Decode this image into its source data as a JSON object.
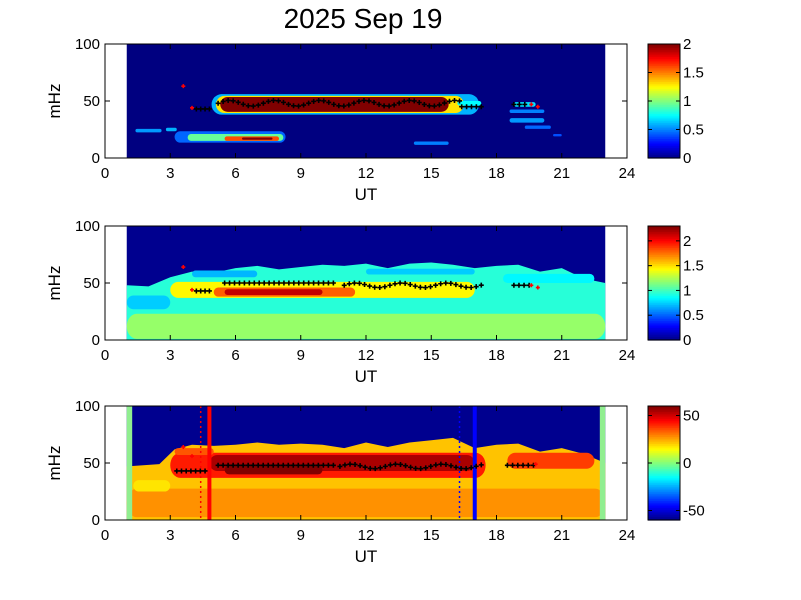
{
  "title": "2025 Sep 19",
  "colors": {
    "background_fill": "#00008f",
    "data_gap": "#ffffff",
    "edge_band": "#90ee90",
    "black_markers": "#000000",
    "red_markers": "#ff0000",
    "blue_line": "#0000ff",
    "red_line": "#ff0000"
  },
  "chart_data": [
    {
      "type": "heatmap",
      "name": "panel-1",
      "xlabel": "UT",
      "ylabel": "mHz",
      "xlim": [
        0,
        24
      ],
      "ylim": [
        0,
        100
      ],
      "xticks": [
        "0",
        "3",
        "6",
        "9",
        "12",
        "15",
        "18",
        "21",
        "24"
      ],
      "yticks": [
        "0",
        "50",
        "100"
      ],
      "data_extent_ut": [
        1,
        23
      ],
      "colorbar": {
        "range": [
          0,
          2
        ],
        "ticks": [
          "0",
          "0.5",
          "1",
          "1.5",
          "2"
        ]
      },
      "background_value": 0,
      "features": [
        {
          "x0": 1.4,
          "x1": 2.6,
          "y": 24,
          "h": 3,
          "v": 0.55
        },
        {
          "x0": 2.8,
          "x1": 3.3,
          "y": 25,
          "h": 3,
          "v": 0.6
        },
        {
          "x0": 3.2,
          "x1": 8.3,
          "y": 18.5,
          "h": 10,
          "v": 0.45
        },
        {
          "x0": 3.8,
          "x1": 8.2,
          "y": 18,
          "h": 6,
          "v": 0.95
        },
        {
          "x0": 5.5,
          "x1": 8.0,
          "y": 17,
          "h": 4,
          "v": 1.6
        },
        {
          "x0": 6.3,
          "x1": 7.7,
          "y": 17,
          "h": 2,
          "v": 2.0
        },
        {
          "x0": 14.2,
          "x1": 15.8,
          "y": 13,
          "h": 3,
          "v": 0.5
        },
        {
          "x0": 4.9,
          "x1": 17.2,
          "y": 47,
          "h": 18,
          "v": 0.6
        },
        {
          "x0": 5.1,
          "x1": 16.5,
          "y": 47,
          "h": 15,
          "v": 1.3
        },
        {
          "x0": 5.3,
          "x1": 15.8,
          "y": 47,
          "h": 13,
          "v": 2.0
        },
        {
          "x0": 16.2,
          "x1": 17.3,
          "y": 48,
          "h": 4,
          "v": 0.75
        },
        {
          "x0": 18.8,
          "x1": 19.8,
          "y": 47,
          "h": 4,
          "v": 0.7
        },
        {
          "x0": 18.6,
          "x1": 20.2,
          "y": 33,
          "h": 4,
          "v": 0.55
        },
        {
          "x0": 18.6,
          "x1": 20.2,
          "y": 41,
          "h": 3,
          "v": 0.5
        },
        {
          "x0": 19.3,
          "x1": 20.5,
          "y": 27,
          "h": 3,
          "v": 0.45
        },
        {
          "x0": 20.6,
          "x1": 21.0,
          "y": 20,
          "h": 2,
          "v": 0.4
        }
      ],
      "black_markers": [
        {
          "x0": 4.2,
          "x1": 4.8,
          "y": 43
        },
        {
          "x0": 5.2,
          "x1": 16.3,
          "y": 48,
          "ripple": 2.5
        },
        {
          "x0": 16.4,
          "x1": 17.3,
          "y": 45
        },
        {
          "x0": 18.8,
          "x1": 19.3,
          "y": 47
        }
      ],
      "red_markers": [
        {
          "x": 3.6,
          "y": 63
        },
        {
          "x": 4.0,
          "y": 44
        },
        {
          "x": 19.6,
          "y": 47
        },
        {
          "x": 19.9,
          "y": 45
        }
      ]
    },
    {
      "type": "heatmap",
      "name": "panel-2",
      "xlabel": "UT",
      "ylabel": "mHz",
      "xlim": [
        0,
        24
      ],
      "ylim": [
        0,
        100
      ],
      "xticks": [
        "0",
        "3",
        "6",
        "9",
        "12",
        "15",
        "18",
        "21",
        "24"
      ],
      "yticks": [
        "0",
        "50",
        "100"
      ],
      "data_extent_ut": [
        1,
        23
      ],
      "colorbar": {
        "range": [
          0,
          2.3
        ],
        "ticks": [
          "0",
          "0.5",
          "1",
          "1.5",
          "2"
        ]
      },
      "background_value": 0.95,
      "top_boundary": [
        {
          "x": 1.0,
          "y": 48
        },
        {
          "x": 2.0,
          "y": 47
        },
        {
          "x": 3.0,
          "y": 55
        },
        {
          "x": 4.0,
          "y": 60
        },
        {
          "x": 5.0,
          "y": 59
        },
        {
          "x": 6.0,
          "y": 63
        },
        {
          "x": 7.0,
          "y": 65
        },
        {
          "x": 8.0,
          "y": 62
        },
        {
          "x": 9.0,
          "y": 64
        },
        {
          "x": 10.0,
          "y": 66
        },
        {
          "x": 11.0,
          "y": 65
        },
        {
          "x": 12.0,
          "y": 67
        },
        {
          "x": 13.0,
          "y": 63
        },
        {
          "x": 14.0,
          "y": 67
        },
        {
          "x": 15.0,
          "y": 68
        },
        {
          "x": 16.0,
          "y": 66
        },
        {
          "x": 17.0,
          "y": 63
        },
        {
          "x": 18.0,
          "y": 65
        },
        {
          "x": 19.0,
          "y": 66
        },
        {
          "x": 20.0,
          "y": 60
        },
        {
          "x": 21.0,
          "y": 63
        },
        {
          "x": 22.0,
          "y": 54
        },
        {
          "x": 23.0,
          "y": 50
        }
      ],
      "features": [
        {
          "x0": 1.0,
          "x1": 23.0,
          "y": 12,
          "h": 22,
          "v": 1.2
        },
        {
          "x0": 3.0,
          "x1": 17.0,
          "y": 44,
          "h": 14,
          "v": 1.45
        },
        {
          "x0": 5.0,
          "x1": 11.5,
          "y": 42,
          "h": 8,
          "v": 1.8
        },
        {
          "x0": 5.5,
          "x1": 10.0,
          "y": 42,
          "h": 5,
          "v": 2.15
        },
        {
          "x0": 1.0,
          "x1": 3.0,
          "y": 33,
          "h": 12,
          "v": 0.75
        },
        {
          "x0": 18.3,
          "x1": 22.5,
          "y": 54,
          "h": 8,
          "v": 0.85
        },
        {
          "x0": 4.0,
          "x1": 7.0,
          "y": 58,
          "h": 6,
          "v": 0.7
        },
        {
          "x0": 12.0,
          "x1": 17.0,
          "y": 60,
          "h": 5,
          "v": 0.75
        }
      ],
      "black_markers": [
        {
          "x0": 4.2,
          "x1": 4.8,
          "y": 43
        },
        {
          "x0": 5.5,
          "x1": 10.5,
          "y": 50
        },
        {
          "x0": 11.0,
          "x1": 17.3,
          "y": 48,
          "ripple": 2
        },
        {
          "x0": 18.8,
          "x1": 19.5,
          "y": 48
        }
      ],
      "red_markers": [
        {
          "x": 3.6,
          "y": 64
        },
        {
          "x": 4.0,
          "y": 44
        },
        {
          "x": 19.6,
          "y": 48
        },
        {
          "x": 19.9,
          "y": 46
        }
      ]
    },
    {
      "type": "heatmap",
      "name": "panel-3",
      "xlabel": "UT",
      "ylabel": "mHz",
      "xlim": [
        0,
        24
      ],
      "ylim": [
        0,
        100
      ],
      "xticks": [
        "0",
        "3",
        "6",
        "9",
        "12",
        "15",
        "18",
        "21",
        "24"
      ],
      "yticks": [
        "0",
        "50",
        "100"
      ],
      "data_extent_ut": [
        1,
        23
      ],
      "colorbar": {
        "range": [
          -60,
          60
        ],
        "ticks": [
          "-50",
          "0",
          "50"
        ]
      },
      "background_value": 22,
      "top_boundary": [
        {
          "x": 1.0,
          "y": 47
        },
        {
          "x": 2.5,
          "y": 49
        },
        {
          "x": 3.2,
          "y": 62
        },
        {
          "x": 4.0,
          "y": 66
        },
        {
          "x": 5.0,
          "y": 65
        },
        {
          "x": 6.0,
          "y": 66
        },
        {
          "x": 7.0,
          "y": 68
        },
        {
          "x": 8.0,
          "y": 66
        },
        {
          "x": 9.0,
          "y": 67
        },
        {
          "x": 10.0,
          "y": 66
        },
        {
          "x": 11.0,
          "y": 63
        },
        {
          "x": 12.0,
          "y": 68
        },
        {
          "x": 13.0,
          "y": 64
        },
        {
          "x": 14.0,
          "y": 68
        },
        {
          "x": 15.0,
          "y": 70
        },
        {
          "x": 16.0,
          "y": 72
        },
        {
          "x": 17.0,
          "y": 63
        },
        {
          "x": 18.0,
          "y": 66
        },
        {
          "x": 19.0,
          "y": 67
        },
        {
          "x": 20.0,
          "y": 60
        },
        {
          "x": 21.0,
          "y": 63
        },
        {
          "x": 22.0,
          "y": 58
        },
        {
          "x": 23.0,
          "y": 50
        }
      ],
      "features": [
        {
          "x0": 1.0,
          "x1": 23.0,
          "y": 15,
          "h": 25,
          "v": 28
        },
        {
          "x0": 1.3,
          "x1": 3.0,
          "y": 30,
          "h": 10,
          "v": 18
        },
        {
          "x0": 3.0,
          "x1": 17.5,
          "y": 48,
          "h": 22,
          "v": 42
        },
        {
          "x0": 4.8,
          "x1": 17.0,
          "y": 50,
          "h": 14,
          "v": 55
        },
        {
          "x0": 5.5,
          "x1": 10.0,
          "y": 44,
          "h": 8,
          "v": 60
        },
        {
          "x0": 18.5,
          "x1": 22.5,
          "y": 52,
          "h": 14,
          "v": 38
        },
        {
          "x0": 3.2,
          "x1": 5.0,
          "y": 60,
          "h": 6,
          "v": 35
        }
      ],
      "edge_bands_ut": [
        [
          1.0,
          1.25
        ],
        [
          22.75,
          23.0
        ]
      ],
      "black_markers": [
        {
          "x0": 3.3,
          "x1": 4.6,
          "y": 43
        },
        {
          "x0": 5.2,
          "x1": 10.5,
          "y": 48
        },
        {
          "x0": 10.8,
          "x1": 17.3,
          "y": 47,
          "ripple": 2
        },
        {
          "x0": 18.5,
          "x1": 19.7,
          "y": 48
        }
      ],
      "red_markers": [
        {
          "x": 3.6,
          "y": 64
        },
        {
          "x": 4.0,
          "y": 56
        },
        {
          "x": 19.8,
          "y": 49
        }
      ],
      "vertical_lines": [
        {
          "x": 4.8,
          "color": "#ff0000",
          "style": "solid"
        },
        {
          "x": 4.4,
          "color": "#ff0000",
          "style": "dotted"
        },
        {
          "x": 17.0,
          "color": "#0000ff",
          "style": "solid"
        },
        {
          "x": 16.3,
          "color": "#0000ff",
          "style": "dotted"
        }
      ]
    }
  ]
}
